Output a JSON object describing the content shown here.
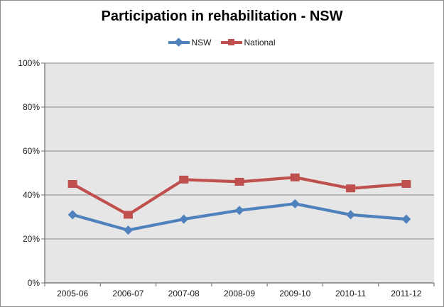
{
  "chart_data": {
    "type": "line",
    "title": "Participation in rehabilitation - NSW",
    "categories": [
      "2005-06",
      "2006-07",
      "2007-08",
      "2008-09",
      "2009-10",
      "2010-11",
      "2011-12"
    ],
    "series": [
      {
        "name": "NSW",
        "color": "#4f81bd",
        "marker": "diamond",
        "values": [
          31,
          24,
          29,
          33,
          36,
          31,
          29
        ]
      },
      {
        "name": "National",
        "color": "#c0504d",
        "marker": "square",
        "values": [
          45,
          31,
          47,
          46,
          48,
          43,
          45
        ]
      }
    ],
    "xlabel": "",
    "ylabel": "",
    "ylim": [
      0,
      100
    ],
    "ytick_step": 20,
    "ytick_labels": [
      "0%",
      "20%",
      "40%",
      "60%",
      "80%",
      "100%"
    ],
    "grid": true,
    "legend_position": "top-center",
    "plot_background": "#e6e6e6",
    "gridline_color": "#9d9d9d",
    "axis_color": "#7f7f7f",
    "title_color": "#000000",
    "label_color": "#1a1a1a"
  }
}
